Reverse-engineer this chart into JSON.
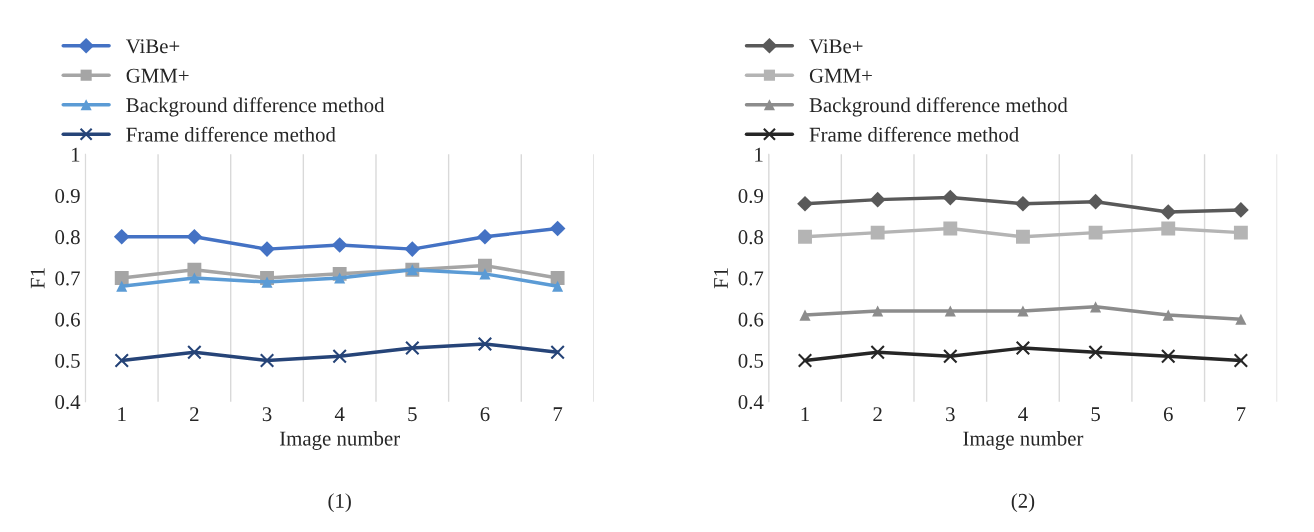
{
  "chart_data": [
    {
      "type": "line",
      "xlabel": "Image number",
      "ylabel": "F1",
      "categories": [
        "1",
        "2",
        "3",
        "4",
        "5",
        "6",
        "7"
      ],
      "ylim": [
        0.4,
        1
      ],
      "yticks": [
        0.4,
        0.5,
        0.6,
        0.7,
        0.8,
        0.9,
        1
      ],
      "grid": "x",
      "legend": "top",
      "annotations": [
        "(1)"
      ],
      "series": [
        {
          "name": "ViBe+",
          "color": "#4472c4",
          "marker": "diamond",
          "values": [
            0.8,
            0.8,
            0.77,
            0.78,
            0.77,
            0.8,
            0.82
          ]
        },
        {
          "name": "GMM+",
          "color": "#a5a5a5",
          "marker": "square",
          "values": [
            0.7,
            0.72,
            0.7,
            0.71,
            0.72,
            0.73,
            0.7
          ]
        },
        {
          "name": "Background difference method",
          "color": "#5b9bd5",
          "marker": "triangle",
          "values": [
            0.68,
            0.7,
            0.69,
            0.7,
            0.72,
            0.71,
            0.68
          ]
        },
        {
          "name": "Frame difference method",
          "color": "#264478",
          "marker": "cross",
          "values": [
            0.5,
            0.52,
            0.5,
            0.51,
            0.53,
            0.54,
            0.52
          ]
        }
      ]
    },
    {
      "type": "line",
      "xlabel": "Image number",
      "ylabel": "F1",
      "categories": [
        "1",
        "2",
        "3",
        "4",
        "5",
        "6",
        "7"
      ],
      "ylim": [
        0.4,
        1
      ],
      "yticks": [
        0.4,
        0.5,
        0.6,
        0.7,
        0.8,
        0.9,
        1
      ],
      "grid": "x",
      "legend": "top",
      "annotations": [
        "(2)"
      ],
      "series": [
        {
          "name": "ViBe+",
          "color": "#595959",
          "marker": "diamond",
          "values": [
            0.88,
            0.89,
            0.895,
            0.88,
            0.885,
            0.86,
            0.865
          ]
        },
        {
          "name": "GMM+",
          "color": "#b4b4b4",
          "marker": "square",
          "values": [
            0.8,
            0.81,
            0.82,
            0.8,
            0.81,
            0.82,
            0.81
          ]
        },
        {
          "name": "Background difference method",
          "color": "#8c8c8c",
          "marker": "triangle",
          "values": [
            0.61,
            0.62,
            0.62,
            0.62,
            0.63,
            0.61,
            0.6
          ]
        },
        {
          "name": "Frame difference method",
          "color": "#262626",
          "marker": "cross",
          "values": [
            0.5,
            0.52,
            0.51,
            0.53,
            0.52,
            0.51,
            0.5
          ]
        }
      ]
    }
  ]
}
